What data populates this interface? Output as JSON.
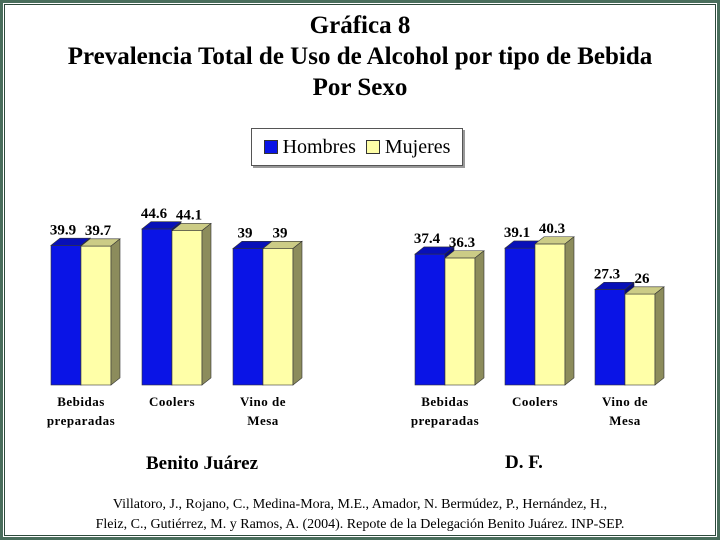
{
  "title": {
    "line1": "Gráfica 8",
    "line2": "Prevalencia Total de Uso de Alcohol por tipo de Bebida",
    "line3": "Por Sexo"
  },
  "legend": {
    "hombres": "Hombres",
    "mujeres": "Mujeres"
  },
  "colors": {
    "hombres": "#0a14e6",
    "mujeres": "#ffffa8"
  },
  "chart_data": [
    {
      "type": "bar",
      "panel_label": "Benito Juárez",
      "categories": [
        "Bebidas preparadas",
        "Coolers",
        "Vino de Mesa"
      ],
      "category_lines": [
        [
          "Bebidas",
          "preparadas"
        ],
        [
          "Coolers"
        ],
        [
          "Vino de",
          "Mesa"
        ]
      ],
      "series": [
        {
          "name": "Hombres",
          "values": [
            39.9,
            44.6,
            39
          ],
          "labels": [
            "39.9",
            "44.6",
            "39"
          ]
        },
        {
          "name": "Mujeres",
          "values": [
            39.7,
            44.1,
            39
          ],
          "labels": [
            "39.7",
            "44.1",
            "39"
          ]
        }
      ]
    },
    {
      "type": "bar",
      "panel_label": "D. F.",
      "categories": [
        "Bebidas preparadas",
        "Coolers",
        "Vino de Mesa"
      ],
      "category_lines": [
        [
          "Bebidas",
          "preparadas"
        ],
        [
          "Coolers"
        ],
        [
          "Vino de",
          "Mesa"
        ]
      ],
      "series": [
        {
          "name": "Hombres",
          "values": [
            37.4,
            39.1,
            27.3
          ],
          "labels": [
            "37.4",
            "39.1",
            "27.3"
          ]
        },
        {
          "name": "Mujeres",
          "values": [
            36.3,
            40.3,
            26
          ],
          "labels": [
            "36.3",
            "40.3",
            "26"
          ]
        }
      ]
    }
  ],
  "source": {
    "line1": "Villatoro, J., Rojano, C., Medina-Mora, M.E., Amador, N. Bermúdez, P., Hernández, H.,",
    "line2": "Fleiz, C., Gutiérrez, M. y Ramos, A. (2004). Repote de la Delegación Benito Juárez. INP-SEP."
  }
}
